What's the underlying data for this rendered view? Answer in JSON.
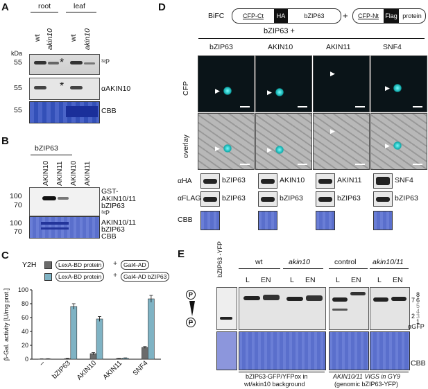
{
  "panelA": {
    "label": "A",
    "group_root": "root",
    "group_leaf": "leaf",
    "lane1": "wt",
    "lane2": "akin10",
    "lane3": "wt",
    "lane4": "akin10",
    "kda": "kDa",
    "mw1": "55",
    "mw2": "55",
    "mw3": "55",
    "star": "*",
    "row1_label": "³²P",
    "row2_label": "αAKIN10",
    "row3_label": "CBB"
  },
  "panelB": {
    "label": "B",
    "group": "bZIP63",
    "lanes": [
      "AKIN10",
      "AKIN11",
      "AKIN10",
      "AKIN11"
    ],
    "mw_top": [
      "100",
      "70"
    ],
    "mw_bottom": [
      "100",
      "70"
    ],
    "labels_top": [
      "GST-",
      "AKIN10/11",
      "bZIP63",
      "³²P"
    ],
    "labels_bottom": [
      "AKIN10/11",
      "bZIP63",
      "CBB"
    ]
  },
  "panelC": {
    "label": "C",
    "assay": "Y2H",
    "legend1_parts": [
      "LexA-BD",
      "protein",
      "Gal4-AD"
    ],
    "legend2_parts": [
      "LexA-BD",
      "protein",
      "Gal4-AD",
      "bZIP63"
    ],
    "plus": "+",
    "colors": {
      "series1": "#6b6b6b",
      "series2": "#7fb3c4"
    }
  },
  "chart_data": {
    "type": "bar",
    "categories": [
      "–",
      "bZIP63",
      "AKIN10",
      "AKIN11",
      "SNF4"
    ],
    "series": [
      {
        "values": [
          0.3,
          0.8,
          8,
          1,
          17
        ]
      },
      {
        "values": [
          0.5,
          76,
          58,
          1.5,
          87
        ]
      }
    ],
    "errors": [
      [
        0.2,
        0.5,
        1.5,
        0.3,
        1.2
      ],
      [
        0.2,
        4,
        3.5,
        0.4,
        5
      ]
    ],
    "ylabel": "β-Gal. activity [U/mg prot.]",
    "ylim": [
      0,
      100
    ],
    "yticks": [
      "0",
      "20",
      "40",
      "60",
      "80",
      "100"
    ]
  },
  "panelD": {
    "label": "D",
    "bifc": "BiFC",
    "construct1": [
      "CFP-Ct",
      "HA",
      "bZIP63"
    ],
    "construct2": [
      "CFP-Nt",
      "Flag",
      "protein"
    ],
    "plus": "+",
    "subtitle": "bZIP63 +",
    "columns": [
      "bZIP63",
      "AKIN10",
      "AKIN11",
      "SNF4"
    ],
    "row_cfp": "CFP",
    "row_overlay": "overlay",
    "wb_rows": [
      "αHA",
      "αFLAG",
      "CBB"
    ],
    "ha_labels": [
      "bZIP63",
      "AKIN10",
      "AKIN11",
      "SNF4"
    ],
    "flag_labels": [
      "bZIP63",
      "bZIP63",
      "bZIP63",
      "bZIP63"
    ]
  },
  "panelE": {
    "label": "E",
    "lane_yfp": "bZIP63 -YFP",
    "group1": "wt",
    "group2": "akin10",
    "group3": "control",
    "group4": "akin10/11",
    "sub": [
      "L",
      "EN",
      "L",
      "EN",
      "L",
      "EN",
      "L",
      "EN"
    ],
    "p": "P",
    "band_labels": [
      "8",
      "7",
      "6",
      "5",
      "4",
      "3",
      "2",
      "1"
    ],
    "agfp": "αGFP",
    "cbb": "CBB",
    "caption1a": "bZIP63-GFP/YFPox in",
    "caption1b": "wt/akin10 background",
    "caption2a": "AKIN10/11 VIGS in GY9",
    "caption2b": "(genomic bZIP63-YFP)"
  }
}
